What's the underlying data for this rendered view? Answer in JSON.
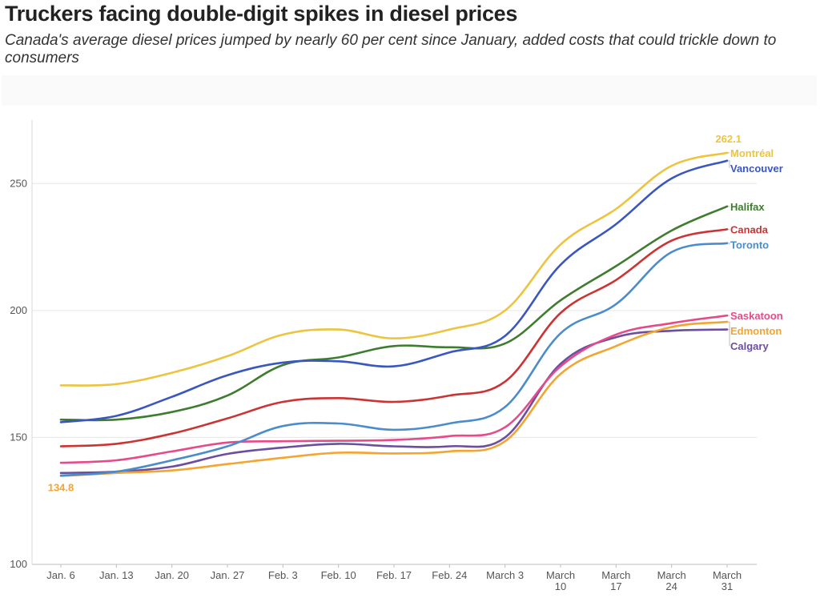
{
  "title": "Truckers facing double-digit spikes in diesel prices",
  "subtitle": "Canada's average diesel prices jumped by nearly 60 per cent since January, added costs that could trickle down to consumers",
  "chart_data": {
    "type": "line",
    "title": "Truckers facing double-digit spikes in diesel prices",
    "subtitle": "Canada's average diesel prices jumped by nearly 60 per cent since January, added costs that could trickle down to consumers",
    "xlabel": "",
    "ylabel": "",
    "categories": [
      "Jan. 6",
      "Jan. 13",
      "Jan. 20",
      "Jan. 27",
      "Feb. 3",
      "Feb. 10",
      "Feb. 17",
      "Feb. 24",
      "March 3",
      "March 10",
      "March 17",
      "March 24",
      "March 31"
    ],
    "ylim": [
      100,
      275
    ],
    "yticks": [
      100,
      150,
      200,
      250
    ],
    "grid": true,
    "legend": "direct labels at line ends",
    "annotations": [
      {
        "series": "Edmonton",
        "point": "start",
        "text": "134.8"
      },
      {
        "series": "Montréal",
        "point": "end",
        "text": "262.1"
      }
    ],
    "series": [
      {
        "name": "Montréal",
        "color": "#ecc440",
        "values": [
          170.5,
          171.0,
          175.5,
          182.0,
          190.5,
          192.5,
          189.0,
          192.5,
          200.0,
          226.0,
          240.0,
          257.0,
          262.1
        ]
      },
      {
        "name": "Vancouver",
        "color": "#3a56c0",
        "values": [
          156.0,
          158.5,
          166.0,
          174.5,
          179.5,
          180.0,
          178.0,
          183.5,
          190.0,
          218.0,
          234.0,
          252.0,
          259.0
        ]
      },
      {
        "name": "Halifax",
        "color": "#3e7d2f",
        "values": [
          157.0,
          157.0,
          160.0,
          166.5,
          178.5,
          181.5,
          186.0,
          185.5,
          187.0,
          204.0,
          217.5,
          231.5,
          241.0
        ]
      },
      {
        "name": "Canada",
        "color": "#cc3333",
        "values": [
          146.5,
          147.5,
          151.5,
          157.5,
          164.0,
          165.5,
          164.0,
          166.5,
          172.0,
          199.0,
          212.0,
          227.5,
          232.0
        ]
      },
      {
        "name": "Toronto",
        "color": "#4a8ccc",
        "values": [
          135.0,
          136.5,
          141.0,
          146.5,
          154.5,
          155.5,
          153.0,
          155.5,
          162.0,
          191.0,
          202.5,
          223.0,
          226.5
        ]
      },
      {
        "name": "Saskatoon",
        "color": "#e64a8a",
        "values": [
          140.0,
          141.0,
          144.5,
          148.0,
          148.5,
          148.7,
          149.0,
          150.5,
          154.0,
          178.0,
          190.5,
          195.0,
          198.0
        ]
      },
      {
        "name": "Edmonton",
        "color": "#f4a430",
        "values": [
          134.8,
          136.0,
          137.0,
          139.5,
          142.0,
          144.0,
          143.7,
          144.5,
          148.5,
          175.0,
          186.0,
          193.5,
          195.5
        ]
      },
      {
        "name": "Calgary",
        "color": "#6b4ea0",
        "values": [
          136.0,
          136.5,
          138.5,
          143.5,
          146.0,
          147.5,
          146.5,
          146.5,
          150.0,
          179.0,
          189.5,
          192.0,
          192.5
        ]
      }
    ]
  }
}
